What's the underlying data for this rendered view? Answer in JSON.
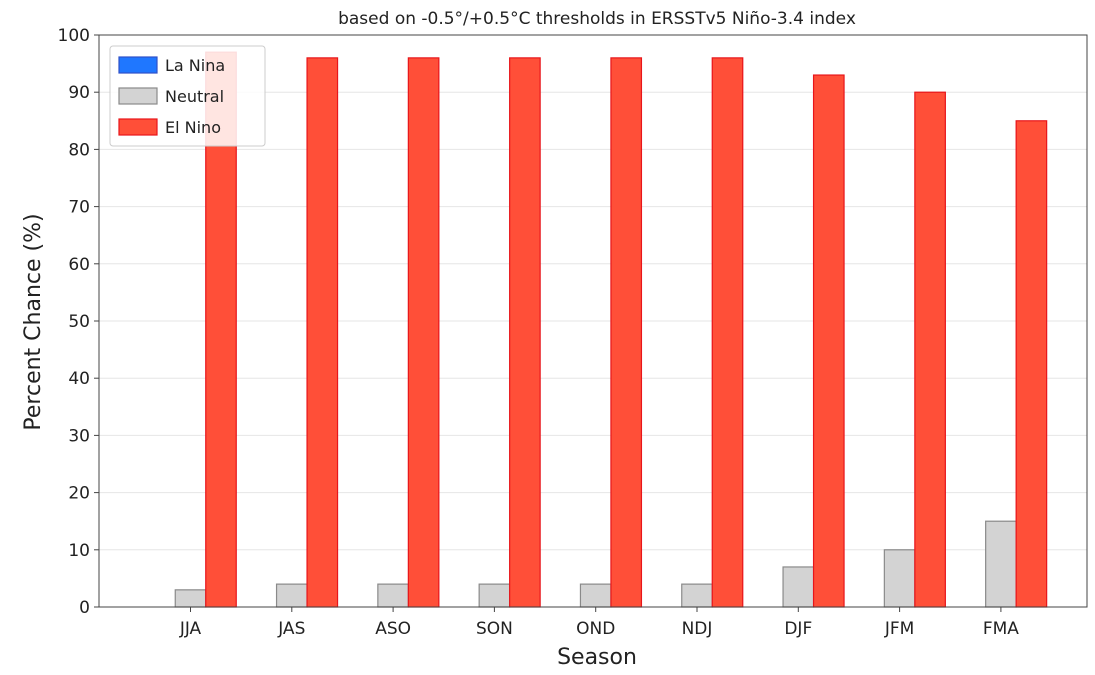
{
  "chart_data": {
    "type": "bar",
    "title": "based on -0.5°/+0.5°C thresholds in ERSSTv5 Niño-3.4 index",
    "xlabel": "Season",
    "ylabel": "Percent Chance (%)",
    "ylim": [
      0,
      100
    ],
    "yticks": [
      0,
      10,
      20,
      30,
      40,
      50,
      60,
      70,
      80,
      90,
      100
    ],
    "grid": true,
    "legend_position": "top-left",
    "categories": [
      "JJA",
      "JAS",
      "ASO",
      "SON",
      "OND",
      "NDJ",
      "DJF",
      "JFM",
      "FMA"
    ],
    "series": [
      {
        "name": "La Nina",
        "color": "#1f77ff",
        "edge_color": "#3050c8",
        "values": [
          0,
          0,
          0,
          0,
          0,
          0,
          0,
          0,
          0
        ]
      },
      {
        "name": "Neutral",
        "color": "#d3d3d3",
        "edge_color": "#8a8a8a",
        "values": [
          3,
          4,
          4,
          4,
          4,
          4,
          7,
          10,
          15
        ]
      },
      {
        "name": "El Nino",
        "color": "#ff4f38",
        "edge_color": "#e8151a",
        "values": [
          97,
          96,
          96,
          96,
          96,
          96,
          93,
          90,
          85
        ]
      }
    ]
  }
}
